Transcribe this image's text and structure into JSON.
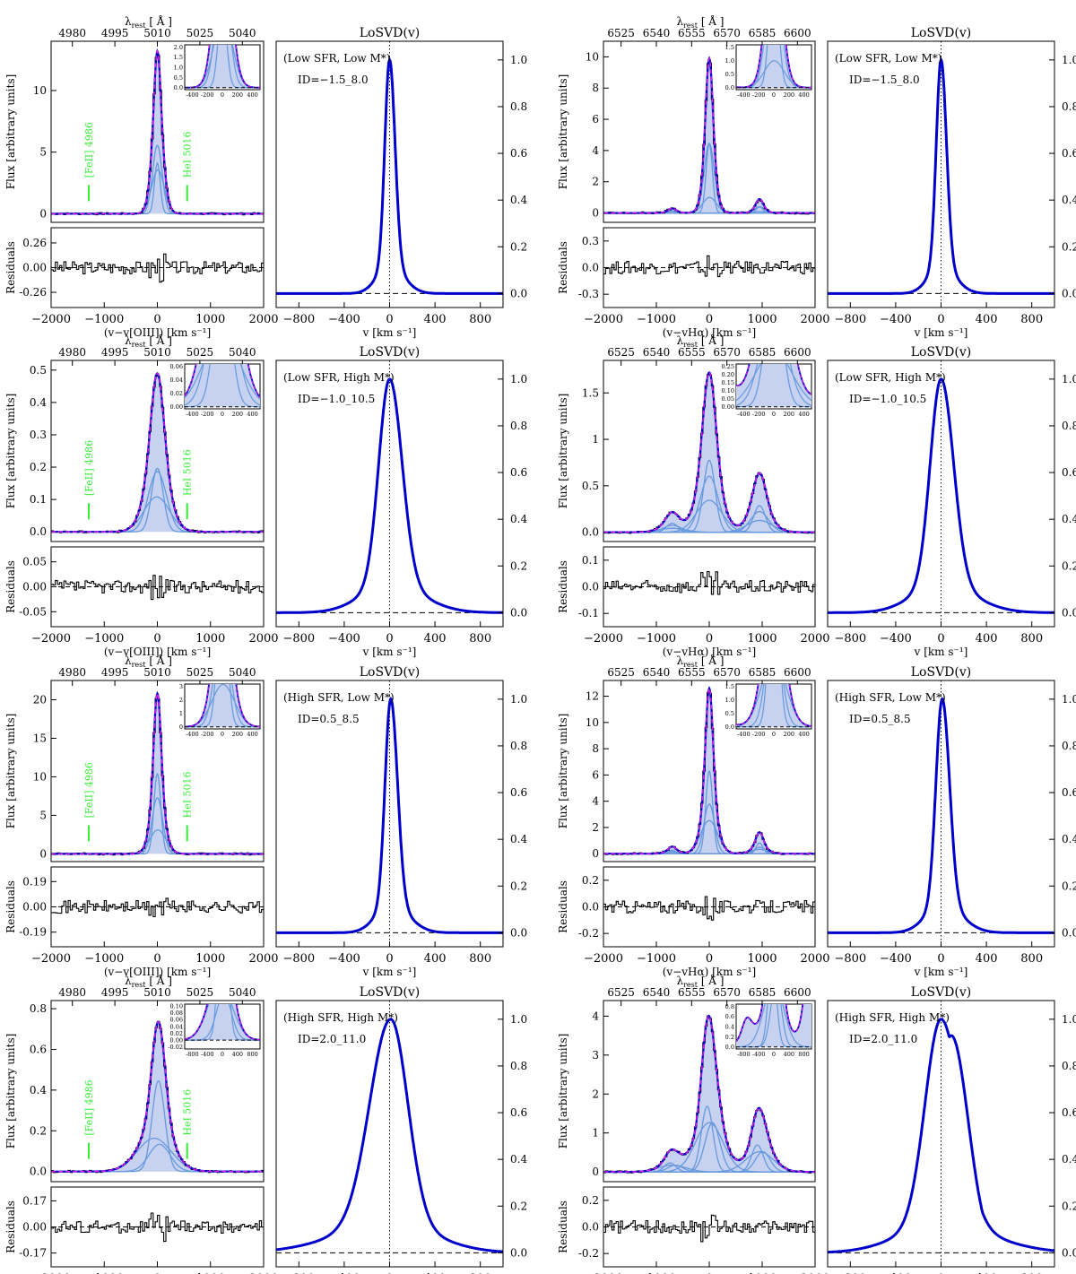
{
  "figure": {
    "lambda_label": "λ",
    "lambda_sub": "rest",
    "lambda_unit": "[ Å ]",
    "flux_ylabel": "Flux [arbitrary units]",
    "residuals_ylabel": "Residuals",
    "losvd_title": "LoSVD(v)",
    "losvd_xlabel": "v [km s⁻¹]",
    "oiii_xlabel": "(v−v[OIII]) [km s⁻¹]",
    "ha_xlabel": "(v−vHα) [km s⁻¹]",
    "feii_label": "[FeII] 4986",
    "hei_label": "HeI 5016",
    "colors": {
      "data": "#000000",
      "total_fit": "#0000cc",
      "components": "#6699dd",
      "fill": "#c7d1f0",
      "model_dash": "#e020e0",
      "line_labels": "#33ee33"
    }
  },
  "chart_data": [
    {
      "type": "line",
      "line": "[OIII]",
      "title": "(Low SFR, Low M*)",
      "id_label": "ID=−1.5_8.0",
      "top_axis_ticks": [
        "4980",
        "4995",
        "5010",
        "5025",
        "5040"
      ],
      "flux_yticks": [
        0,
        5,
        10
      ],
      "flux_ylim": [
        -0.7,
        14
      ],
      "peak_flux": 13.2,
      "components": [
        {
          "center": 0,
          "sigma": 90,
          "amp": 0.42
        },
        {
          "center": 0,
          "sigma": 55,
          "amp": 0.31
        },
        {
          "center": 10,
          "sigma": 120,
          "amp": 0.27
        }
      ],
      "inset_yticks": [
        "0.0",
        "0.5",
        "1.0",
        "1.5",
        "2.0"
      ],
      "inset_xticks": [
        "-400",
        "-200",
        "0",
        "200",
        "400"
      ],
      "residual_yticks": [
        "0.26",
        "0.00",
        "-0.26"
      ],
      "residual_ylim": [
        -0.42,
        0.42
      ],
      "losvd": {
        "sigma_left": 42,
        "sigma_right": 48,
        "center": 0
      }
    },
    {
      "type": "line",
      "line": "Hα",
      "title": "(Low SFR, Low M*)",
      "id_label": "ID=−1.5_8.0",
      "top_axis_ticks": [
        "6525",
        "6540",
        "6555",
        "6570",
        "6585",
        "6600"
      ],
      "flux_yticks": [
        0,
        2,
        4,
        6,
        8,
        10
      ],
      "flux_ylim": [
        -0.6,
        11
      ],
      "peak_flux": 9.9,
      "nii_ratio": 0.09,
      "components": [
        {
          "center": 0,
          "sigma": 95,
          "amp": 0.45
        },
        {
          "center": 0,
          "sigma": 60,
          "amp": 0.45
        },
        {
          "center": 5,
          "sigma": 130,
          "amp": 0.1
        }
      ],
      "inset_yticks": [
        "0.0",
        "0.5",
        "1.0",
        "1.5"
      ],
      "inset_xticks": [
        "-400",
        "-200",
        "0",
        "200",
        "400"
      ],
      "residual_yticks": [
        "0.3",
        "0.0",
        "-0.3"
      ],
      "residual_ylim": [
        -0.45,
        0.45
      ],
      "losvd": {
        "sigma_left": 42,
        "sigma_right": 48,
        "center": 0
      }
    },
    {
      "type": "line",
      "line": "[OIII]",
      "title": "(Low SFR, High M*)",
      "id_label": "ID=−1.0_10.5",
      "top_axis_ticks": [
        "4980",
        "4995",
        "5010",
        "5025",
        "5040"
      ],
      "flux_yticks": [
        0.0,
        0.1,
        0.2,
        0.3,
        0.4,
        0.5
      ],
      "flux_ylim": [
        -0.03,
        0.53
      ],
      "peak_flux": 0.49,
      "components": [
        {
          "center": 0,
          "sigma": 110,
          "amp": 0.4
        },
        {
          "center": 0,
          "sigma": 170,
          "amp": 0.38
        },
        {
          "center": -10,
          "sigma": 240,
          "amp": 0.22
        }
      ],
      "inset_yticks": [
        "0.00",
        "0.02",
        "0.04",
        "0.06"
      ],
      "inset_xticks": [
        "-400",
        "-200",
        "0",
        "200",
        "400"
      ],
      "residual_yticks": [
        "0.05",
        "0.00",
        "-0.05"
      ],
      "residual_ylim": [
        -0.08,
        0.08
      ],
      "losvd": {
        "sigma_left": 95,
        "sigma_right": 110,
        "center": 0
      }
    },
    {
      "type": "line",
      "line": "Hα",
      "title": "(Low SFR, High M*)",
      "id_label": "ID=−1.0_10.5",
      "top_axis_ticks": [
        "6525",
        "6540",
        "6555",
        "6570",
        "6585",
        "6600"
      ],
      "flux_yticks": [
        0.0,
        0.5,
        1.0,
        1.5
      ],
      "flux_ylim": [
        -0.1,
        1.85
      ],
      "peak_flux": 1.72,
      "nii_ratio": 0.37,
      "components": [
        {
          "center": 0,
          "sigma": 110,
          "amp": 0.45
        },
        {
          "center": 0,
          "sigma": 170,
          "amp": 0.35
        },
        {
          "center": 0,
          "sigma": 240,
          "amp": 0.2
        }
      ],
      "inset_yticks": [
        "0.00",
        "0.05",
        "0.10",
        "0.15",
        "0.20",
        "0.25"
      ],
      "inset_xticks": [
        "-400",
        "-200",
        "0",
        "200",
        "400"
      ],
      "residual_yticks": [
        "0.1",
        "0.0",
        "-0.1"
      ],
      "residual_ylim": [
        -0.15,
        0.15
      ],
      "losvd": {
        "sigma_left": 95,
        "sigma_right": 110,
        "center": 0
      }
    },
    {
      "type": "line",
      "line": "[OIII]",
      "title": "(High SFR, Low M*)",
      "id_label": "ID=0.5_8.5",
      "top_axis_ticks": [
        "4980",
        "4995",
        "5010",
        "5025",
        "5040"
      ],
      "flux_yticks": [
        0,
        5,
        10,
        15,
        20
      ],
      "flux_ylim": [
        -1,
        22.5
      ],
      "peak_flux": 20.8,
      "components": [
        {
          "center": 0,
          "sigma": 65,
          "amp": 0.5
        },
        {
          "center": 0,
          "sigma": 100,
          "amp": 0.35
        },
        {
          "center": 10,
          "sigma": 150,
          "amp": 0.15
        }
      ],
      "inset_yticks": [
        "0",
        "1",
        "2",
        "3"
      ],
      "inset_xticks": [
        "-400",
        "-200",
        "0",
        "200",
        "400"
      ],
      "residual_yticks": [
        "0.19",
        "0.00",
        "-0.19"
      ],
      "residual_ylim": [
        -0.3,
        0.3
      ],
      "losvd": {
        "sigma_left": 50,
        "sigma_right": 60,
        "center": 10
      }
    },
    {
      "type": "line",
      "line": "Hα",
      "title": "(High SFR, Low M*)",
      "id_label": "ID=0.5_8.5",
      "top_axis_ticks": [
        "6525",
        "6540",
        "6555",
        "6570",
        "6585",
        "6600"
      ],
      "flux_yticks": [
        0,
        2,
        4,
        6,
        8,
        10,
        12
      ],
      "flux_ylim": [
        -0.6,
        13.2
      ],
      "peak_flux": 12.6,
      "nii_ratio": 0.13,
      "components": [
        {
          "center": 0,
          "sigma": 65,
          "amp": 0.5
        },
        {
          "center": 0,
          "sigma": 100,
          "amp": 0.3
        },
        {
          "center": 0,
          "sigma": 160,
          "amp": 0.2
        }
      ],
      "inset_yticks": [
        "0.0",
        "0.5",
        "1.0",
        "1.5"
      ],
      "inset_xticks": [
        "-400",
        "-200",
        "0",
        "200",
        "400"
      ],
      "residual_yticks": [
        "0.2",
        "0.0",
        "-0.2"
      ],
      "residual_ylim": [
        -0.3,
        0.3
      ],
      "losvd": {
        "sigma_left": 55,
        "sigma_right": 65,
        "center": 10
      }
    },
    {
      "type": "line",
      "line": "[OIII]",
      "title": "(High SFR, High M*)",
      "id_label": "ID=2.0_11.0",
      "top_axis_ticks": [
        "4980",
        "4995",
        "5010",
        "5025",
        "5040"
      ],
      "flux_yticks": [
        0.0,
        0.2,
        0.4,
        0.6,
        0.8
      ],
      "flux_ylim": [
        -0.05,
        0.84
      ],
      "peak_flux": 0.73,
      "components": [
        {
          "center": 20,
          "sigma": 120,
          "amp": 0.6
        },
        {
          "center": -60,
          "sigma": 320,
          "amp": 0.22
        },
        {
          "center": 40,
          "sigma": 200,
          "amp": 0.18
        }
      ],
      "inset_yticks": [
        "-0.02",
        "0.00",
        "0.02",
        "0.04",
        "0.06",
        "0.08",
        "0.10"
      ],
      "inset_xticks": [
        "-800",
        "-400",
        "0",
        "400",
        "800"
      ],
      "residual_yticks": [
        "0.17",
        "0.00",
        "-0.17"
      ],
      "residual_ylim": [
        -0.26,
        0.26
      ],
      "losvd": {
        "sigma_left": 185,
        "sigma_right": 150,
        "center": 10
      }
    },
    {
      "type": "line",
      "line": "Hα",
      "title": "(High SFR, High M*)",
      "id_label": "ID=2.0_11.0",
      "top_axis_ticks": [
        "6525",
        "6540",
        "6555",
        "6570",
        "6585",
        "6600"
      ],
      "flux_yticks": [
        0,
        1,
        2,
        3,
        4
      ],
      "flux_ylim": [
        -0.25,
        4.4
      ],
      "peak_flux": 4.0,
      "nii_ratio": 0.41,
      "components": [
        {
          "center": -40,
          "sigma": 110,
          "amp": 0.4
        },
        {
          "center": 60,
          "sigma": 140,
          "amp": 0.3
        },
        {
          "center": 0,
          "sigma": 260,
          "amp": 0.3
        }
      ],
      "inset_yticks": [
        "0.0",
        "0.2",
        "0.4",
        "0.6",
        "0.8"
      ],
      "inset_xticks": [
        "-800",
        "-400",
        "0",
        "400",
        "800"
      ],
      "residual_yticks": [
        "0.2",
        "0.0",
        "-0.2"
      ],
      "residual_ylim": [
        -0.3,
        0.3
      ],
      "losvd": {
        "sigma_left": 140,
        "sigma_right": 170,
        "center": 0,
        "shoulder": true
      }
    }
  ],
  "shared_axes": {
    "offset_xticks": [
      -2000,
      -1000,
      0,
      1000,
      2000
    ],
    "offset_xlim": [
      -2000,
      2000
    ],
    "losvd_xticks": [
      -800,
      -400,
      0,
      400,
      800
    ],
    "losvd_xlim": [
      -1000,
      1000
    ],
    "losvd_yticks": [
      "0.0",
      "0.2",
      "0.4",
      "0.6",
      "0.8",
      "1.0"
    ],
    "losvd_ylim": [
      -0.06,
      1.08
    ]
  }
}
